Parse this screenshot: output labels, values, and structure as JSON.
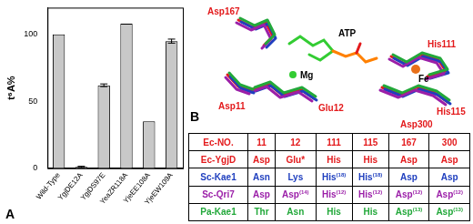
{
  "chart_data": {
    "type": "bar",
    "y_label": "t⁶A%",
    "categories": [
      "Wild-Type",
      "YgjDE12A",
      "YgjDS97E",
      "YeaZR118A",
      "YjeEE108A",
      "YjeEW109A"
    ],
    "values": [
      100,
      1,
      62,
      108,
      35,
      95
    ],
    "errors": [
      0,
      0.5,
      1,
      0,
      0,
      1.5
    ],
    "color": "#c8c8c8",
    "ylim": [
      0,
      120
    ],
    "yticks": [
      0,
      50,
      100
    ],
    "grid": false
  },
  "panels": {
    "a_label": "A",
    "b_label": "B"
  },
  "structure": {
    "labels": [
      {
        "text": "Asp167",
        "color": "#e31a1c"
      },
      {
        "text": "ATP",
        "color": "#000000"
      },
      {
        "text": "His111",
        "color": "#e31a1c"
      },
      {
        "text": "Fe",
        "color": "#000000"
      },
      {
        "text": "Mg",
        "color": "#000000"
      },
      {
        "text": "Glu12",
        "color": "#e31a1c"
      },
      {
        "text": "His115",
        "color": "#e31a1c"
      },
      {
        "text": "Asp300",
        "color": "#e31a1c"
      },
      {
        "text": "Asp11",
        "color": "#e31a1c"
      }
    ]
  },
  "table": {
    "header": [
      "Ec-NO.",
      "11",
      "12",
      "111",
      "115",
      "167",
      "300"
    ],
    "header_color": "#e31a1c",
    "rows": [
      {
        "name": "Ec-YgjD",
        "color": "#e31a1c",
        "cells": [
          "Asp",
          "Glu*",
          "His",
          "His",
          "Asp",
          "Asp"
        ]
      },
      {
        "name": "Sc-Kae1",
        "color": "#1f3fbf",
        "cells": [
          "Asn",
          "Lys",
          "His(18)",
          "His(18)",
          "Asp",
          "Asp"
        ]
      },
      {
        "name": "Sc-Qri7",
        "color": "#9b1fa8",
        "cells": [
          "Asp",
          "Asp(14)",
          "His(12)",
          "His(12)",
          "Asp(12)",
          "Asp(12)"
        ]
      },
      {
        "name": "Pa-Kae1",
        "color": "#22a83a",
        "cells": [
          "Thr",
          "Asn",
          "His",
          "His",
          "Asp(13)",
          "Asp(13)"
        ]
      }
    ]
  }
}
